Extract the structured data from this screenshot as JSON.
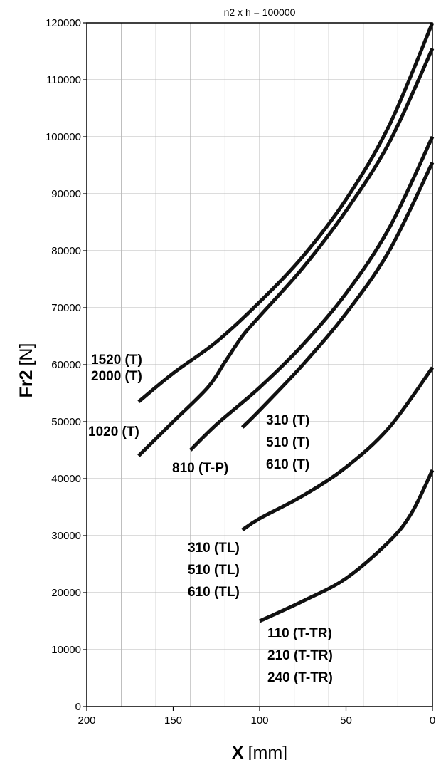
{
  "chart_data": {
    "type": "line",
    "title": "n2 x h = 100000",
    "xlabel_main": "X",
    "xlabel_unit": "[mm]",
    "ylabel_main": "Fr2",
    "ylabel_unit": "[N]",
    "xlim": [
      200,
      0
    ],
    "ylim": [
      0,
      120000
    ],
    "x_ticks": [
      200,
      150,
      100,
      50,
      0
    ],
    "y_ticks": [
      0,
      10000,
      20000,
      30000,
      40000,
      50000,
      60000,
      70000,
      80000,
      90000,
      100000,
      110000,
      120000
    ],
    "grid": true,
    "series": [
      {
        "labels": [
          "1520 (T)",
          "2000 (T)"
        ],
        "x": [
          170,
          150,
          125,
          100,
          75,
          50,
          25,
          0
        ],
        "y": [
          53500,
          58500,
          64000,
          71000,
          79000,
          89000,
          102000,
          120000
        ]
      },
      {
        "labels": [
          "1020 (T)"
        ],
        "x": [
          170,
          150,
          130,
          120,
          110,
          100,
          75,
          50,
          25,
          0
        ],
        "y": [
          44000,
          50000,
          56000,
          60500,
          65000,
          68500,
          77000,
          87000,
          99000,
          115500
        ]
      },
      {
        "labels": [
          "810 (T-P)"
        ],
        "x": [
          140,
          125,
          100,
          75,
          50,
          25,
          0
        ],
        "y": [
          45000,
          49500,
          56000,
          63500,
          72500,
          84000,
          100000
        ]
      },
      {
        "labels": [
          "310 (T)",
          "510 (T)",
          "610 (T)"
        ],
        "x": [
          110,
          100,
          75,
          50,
          25,
          0
        ],
        "y": [
          49000,
          52000,
          60000,
          69000,
          80000,
          95500
        ]
      },
      {
        "labels": [
          "310 (TL)",
          "510 (TL)",
          "610 (TL)"
        ],
        "x": [
          110,
          100,
          75,
          50,
          25,
          0
        ],
        "y": [
          31000,
          33000,
          37000,
          42000,
          49000,
          59500
        ]
      },
      {
        "labels": [
          "110 (T-TR)",
          "210 (T-TR)",
          "240 (T-TR)"
        ],
        "x": [
          100,
          75,
          50,
          25,
          12,
          0
        ],
        "y": [
          15000,
          18500,
          22500,
          29000,
          34000,
          41500
        ]
      }
    ]
  }
}
